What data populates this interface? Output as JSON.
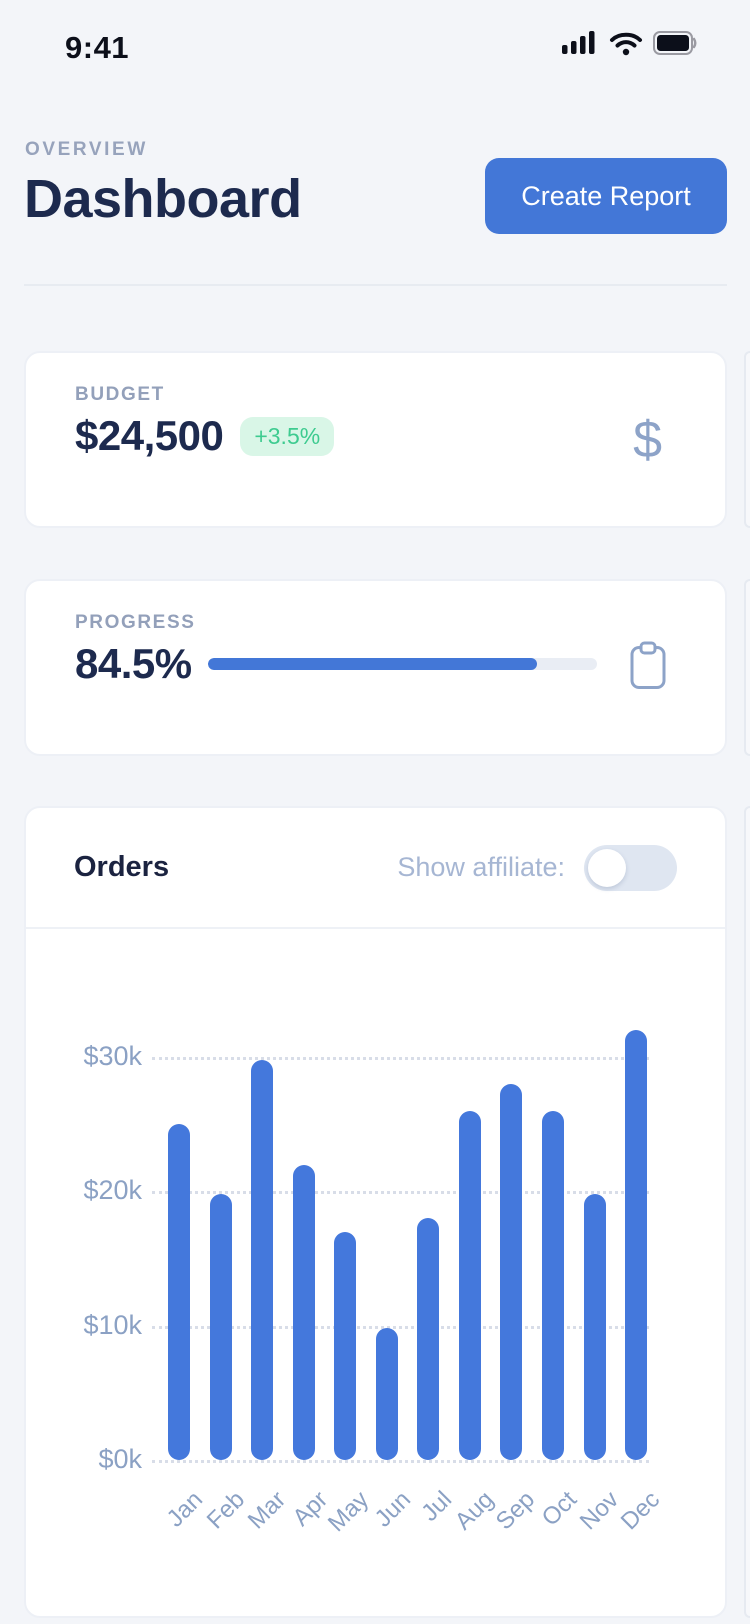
{
  "status_bar": {
    "time": "9:41"
  },
  "header": {
    "eyebrow": "OVERVIEW",
    "title": "Dashboard",
    "create_report_label": "Create Report"
  },
  "budget_card": {
    "label": "BUDGET",
    "value": "$24,500",
    "delta": "+3.5%",
    "icon_glyph": "$"
  },
  "progress_card": {
    "label": "PROGRESS",
    "value": "84.5%",
    "percent": 84.5
  },
  "orders_card": {
    "title": "Orders",
    "toggle_label": "Show affiliate:",
    "toggle_state": "off"
  },
  "chart_data": {
    "type": "bar",
    "title": "Orders",
    "categories": [
      "Jan",
      "Feb",
      "Mar",
      "Apr",
      "May",
      "Jun",
      "Jul",
      "Aug",
      "Sep",
      "Oct",
      "Nov",
      "Dec"
    ],
    "values": [
      25,
      19.8,
      29.8,
      22,
      17,
      9.8,
      18,
      26,
      28,
      26,
      19.8,
      32
    ],
    "unit": "thousand dollars",
    "xlabel": "",
    "ylabel": "",
    "ytick_values": [
      0,
      10,
      20,
      30
    ],
    "ytick_labels": [
      "$0k",
      "$10k",
      "$20k",
      "$30k"
    ],
    "ylim": [
      0,
      34
    ],
    "grid": "horizontal dotted",
    "legend": null,
    "bar_color": "#4478dc"
  },
  "colors": {
    "page_bg": "#f3f5f9",
    "accent_blue": "#4377d7",
    "bar_blue": "#4478dc",
    "navy_text": "#1d2a4e",
    "muted_label": "#93a0ba",
    "axis_label": "#8ba1c4",
    "green_badge_text": "#3ecb90",
    "green_badge_bg": "#d9f6e7",
    "progress_track": "#e9edf4",
    "toggle_track": "#dfe6f1",
    "card_border": "#edf0f6"
  }
}
